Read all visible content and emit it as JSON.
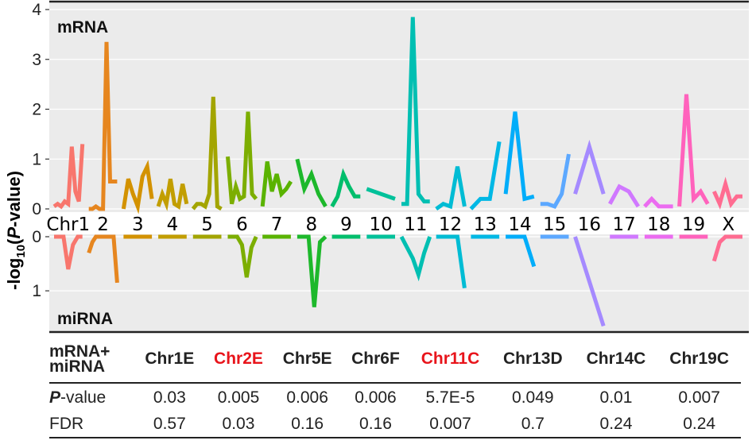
{
  "chart_data": {
    "type": "line",
    "ylabel": "-log10(P-value)",
    "panels": {
      "top": {
        "label": "mRNA",
        "ylim": [
          0,
          4
        ],
        "yticks": [
          "0",
          "1",
          "2",
          "3",
          "4"
        ]
      },
      "bottom": {
        "label": "miRNA",
        "ylim": [
          0,
          1.6
        ],
        "yticks": [
          "0",
          "1"
        ]
      }
    },
    "chromosome_axis_prefix": "Chr",
    "chromosomes": [
      {
        "name": "1",
        "color": "#F8766D",
        "mrna": [
          0.05,
          0.1,
          0.05,
          0.15,
          0.1,
          1.25,
          0.35,
          0.15,
          1.3
        ],
        "mirna": [
          0.0,
          0.0,
          0.0,
          0.6,
          0.15,
          0.0,
          0.0
        ]
      },
      {
        "name": "2",
        "color": "#E6861F",
        "mrna": [
          0.0,
          0.0,
          0.05,
          0.0,
          0.0,
          3.35,
          0.55,
          0.55,
          0.55
        ],
        "mirna": [
          0.3,
          0.1,
          0.0,
          0.0,
          0.0,
          0.0,
          0.0,
          0.0,
          0.85
        ]
      },
      {
        "name": "3",
        "color": "#D39200",
        "mrna": [
          0.0,
          0.6,
          0.3,
          0.05,
          0.65,
          0.85,
          0.2
        ],
        "mirna": [
          0.0,
          0.0,
          0.0,
          0.0,
          0.0,
          0.0,
          0.0
        ]
      },
      {
        "name": "4",
        "color": "#C29E00",
        "mrna": [
          0.05,
          0.3,
          0.1,
          0.6,
          0.1,
          0.05,
          0.5,
          0.1
        ],
        "mirna": [
          0.0,
          0.0,
          0.0,
          0.0,
          0.0,
          0.0,
          0.0
        ]
      },
      {
        "name": "5",
        "color": "#A3A500",
        "mrna": [
          0.0,
          0.1,
          0.1,
          0.05,
          0.3,
          2.25,
          0.05,
          0.0
        ],
        "mirna": [
          0.0,
          0.0,
          0.0,
          0.0,
          0.0,
          0.0,
          0.0
        ]
      },
      {
        "name": "6",
        "color": "#7CAE00",
        "mrna": [
          1.05,
          0.1,
          0.45,
          0.2,
          0.25,
          1.95,
          0.3,
          0.2
        ],
        "mirna": [
          0.0,
          0.0,
          0.0,
          0.15,
          0.75,
          0.2,
          0.0
        ]
      },
      {
        "name": "7",
        "color": "#5AB300",
        "mrna": [
          0.05,
          0.95,
          0.35,
          0.7,
          0.3,
          0.4,
          0.55
        ],
        "mirna": [
          0.0,
          0.0,
          0.0,
          0.0,
          0.0,
          0.0,
          0.0
        ]
      },
      {
        "name": "8",
        "color": "#1DB82B",
        "mrna": [
          1.0,
          0.4,
          0.7,
          0.3,
          0.05
        ],
        "mirna": [
          0.0,
          0.0,
          0.0,
          1.3,
          0.1,
          0.0
        ]
      },
      {
        "name": "9",
        "color": "#00BE6C",
        "mrna": [
          0.05,
          0.25,
          0.7,
          0.45,
          0.25,
          0.25
        ],
        "mirna": [
          0.0,
          0.0,
          0.0,
          0.0,
          0.0,
          0.0
        ]
      },
      {
        "name": "10",
        "color": "#00C19A",
        "mrna": [
          0.4,
          0.2
        ],
        "mirna": [
          0.0,
          0.0,
          0.0
        ]
      },
      {
        "name": "11",
        "color": "#00BFB2",
        "mrna": [
          0.1,
          0.1,
          3.85,
          0.3,
          0.15,
          0.15
        ],
        "mirna": [
          0.0,
          0.2,
          0.4,
          0.7,
          0.3,
          0.0
        ]
      },
      {
        "name": "12",
        "color": "#00BCD4",
        "mrna": [
          0.0,
          0.1,
          0.05,
          0.85,
          0.05
        ],
        "mirna": [
          0.0,
          0.0,
          0.0,
          0.0,
          0.95
        ]
      },
      {
        "name": "13",
        "color": "#00B8E5",
        "mrna": [
          0.0,
          0.2,
          0.2,
          1.35
        ],
        "mirna": [
          0.0,
          0.0,
          0.0
        ]
      },
      {
        "name": "14",
        "color": "#00ADFA",
        "mrna": [
          0.3,
          1.95,
          0.2,
          0.25
        ],
        "mirna": [
          0.0,
          0.0,
          0.0,
          0.55
        ]
      },
      {
        "name": "15",
        "color": "#5CA8FF",
        "mrna": [
          0.1,
          0.1,
          0.05,
          0.3,
          1.1
        ],
        "mirna": [
          0.0,
          0.0,
          0.0,
          0.0,
          0.0
        ]
      },
      {
        "name": "16",
        "color": "#A58AFF",
        "mrna": [
          0.3,
          1.25,
          0.3
        ],
        "mirna": [
          0.0,
          1.65
        ]
      },
      {
        "name": "17",
        "color": "#D078FF",
        "mrna": [
          0.1,
          0.45,
          0.35,
          0.05
        ],
        "mirna": [
          0.0,
          0.0,
          0.0,
          0.0
        ]
      },
      {
        "name": "18",
        "color": "#EB6BF0",
        "mrna": [
          0.05,
          0.2,
          0.05,
          0.05,
          0.05
        ],
        "mirna": [
          0.0,
          0.0,
          0.0,
          0.0
        ]
      },
      {
        "name": "19",
        "color": "#FF62BC",
        "mrna": [
          0.05,
          2.3,
          0.2,
          0.35,
          0.1
        ],
        "mirna": [
          0.0,
          0.0,
          0.0,
          0.0,
          0.0
        ]
      },
      {
        "name": "X",
        "color": "#FF6C91",
        "mrna": [
          0.35,
          0.1,
          0.5,
          0.1,
          0.25,
          0.25
        ],
        "mirna": [
          0.45,
          0.1,
          0.0,
          0.0,
          0.0,
          0.0
        ]
      }
    ]
  },
  "table": {
    "corner_line1": "mRNA+",
    "corner_line2": "miRNA",
    "highlight_color": "#e8141b",
    "columns": [
      {
        "region": "Chr1E",
        "highlight": false,
        "pvalue": "0.03",
        "fdr": "0.57"
      },
      {
        "region": "Chr2E",
        "highlight": true,
        "pvalue": "0.005",
        "fdr": "0.03"
      },
      {
        "region": "Chr5E",
        "highlight": false,
        "pvalue": "0.006",
        "fdr": "0.16"
      },
      {
        "region": "Chr6F",
        "highlight": false,
        "pvalue": "0.006",
        "fdr": "0.16"
      },
      {
        "region": "Chr11C",
        "highlight": true,
        "pvalue": "5.7E-5",
        "fdr": "0.007"
      },
      {
        "region": "Chr13D",
        "highlight": false,
        "pvalue": "0.049",
        "fdr": "0.7"
      },
      {
        "region": "Chr14C",
        "highlight": false,
        "pvalue": "0.01",
        "fdr": "0.24"
      },
      {
        "region": "Chr19C",
        "highlight": false,
        "pvalue": "0.007",
        "fdr": "0.24"
      }
    ],
    "pvalue_label_bold": "P",
    "pvalue_label_rest": "-value",
    "fdr_label": "FDR"
  }
}
